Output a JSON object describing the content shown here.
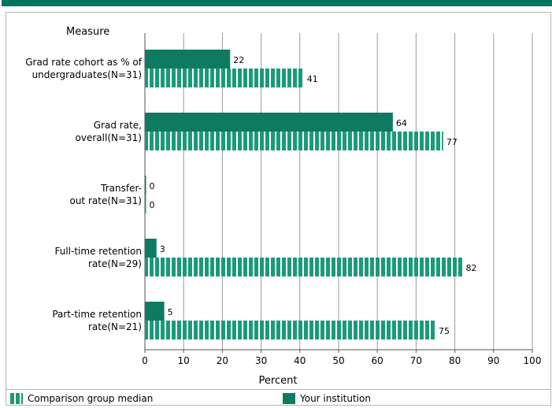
{
  "colors": {
    "institution": "#0f7a62",
    "comparison": "#1a9a7a",
    "top_bar": "#00755e",
    "grid": "#9a9a9a"
  },
  "chart_data": {
    "type": "bar",
    "orientation": "horizontal",
    "title": "",
    "category_axis_title": "Measure",
    "xlabel": "Percent",
    "xlim": [
      0,
      100
    ],
    "ticks": [
      0,
      10,
      20,
      30,
      40,
      50,
      60,
      70,
      80,
      90,
      100
    ],
    "grid": true,
    "legend_position": "bottom",
    "categories": [
      [
        "Grad rate cohort as % of",
        "undergraduates(N=31)"
      ],
      [
        "Grad rate,",
        "overall(N=31)"
      ],
      [
        "Transfer-",
        "out rate(N=31)"
      ],
      [
        "Full-time retention",
        "rate(N=29)"
      ],
      [
        "Part-time retention",
        "rate(N=21)"
      ]
    ],
    "series": [
      {
        "name": "Your institution",
        "values": [
          22,
          64,
          0,
          3,
          5
        ]
      },
      {
        "name": "Comparison group median",
        "values": [
          41,
          77,
          0,
          82,
          75
        ]
      }
    ]
  },
  "legend": {
    "comparison_label": "Comparison group median",
    "institution_label": "Your institution"
  }
}
